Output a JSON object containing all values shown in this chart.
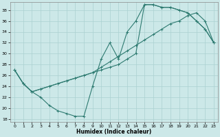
{
  "xlabel": "Humidex (Indice chaleur)",
  "bg_color": "#cce8e8",
  "line_color": "#2d7a70",
  "xlim": [
    -0.5,
    23.5
  ],
  "ylim": [
    17.5,
    39.5
  ],
  "xticks": [
    0,
    1,
    2,
    3,
    4,
    5,
    6,
    7,
    8,
    9,
    10,
    11,
    12,
    13,
    14,
    15,
    16,
    17,
    18,
    19,
    20,
    21,
    22,
    23
  ],
  "yticks": [
    18,
    20,
    22,
    24,
    26,
    28,
    30,
    32,
    34,
    36,
    38
  ],
  "line1_x": [
    0,
    1,
    2,
    3,
    4,
    5,
    6,
    7,
    8,
    9,
    10,
    11,
    12,
    13,
    14,
    15,
    16,
    17,
    18,
    19,
    20,
    21,
    22,
    23
  ],
  "line1_y": [
    27,
    24.5,
    23,
    22,
    20.5,
    19.5,
    19,
    18.5,
    18.5,
    24,
    29,
    32,
    29,
    34,
    36,
    39,
    39,
    38.5,
    38.5,
    38,
    37.5,
    36,
    34.5,
    32
  ],
  "line2_x": [
    0,
    1,
    2,
    3,
    4,
    5,
    6,
    7,
    8,
    9,
    10,
    11,
    12,
    13,
    14,
    15,
    16,
    17,
    18,
    19,
    20,
    21,
    22,
    23
  ],
  "line2_y": [
    27,
    24.5,
    23,
    23.5,
    24,
    24.5,
    25,
    25.5,
    26,
    26.5,
    27,
    27.5,
    28,
    29,
    30,
    39,
    39,
    38.5,
    38.5,
    38,
    37.5,
    36,
    34.5,
    32
  ],
  "line3_x": [
    0,
    1,
    2,
    3,
    4,
    5,
    6,
    7,
    8,
    9,
    10,
    11,
    12,
    13,
    14,
    15,
    16,
    17,
    18,
    19,
    20,
    21,
    22,
    23
  ],
  "line3_y": [
    27,
    24.5,
    23,
    23.5,
    24,
    24.5,
    25,
    25.5,
    26,
    26.5,
    27.5,
    28.5,
    29.5,
    30.5,
    31.5,
    32.5,
    33.5,
    34.5,
    35.5,
    36,
    37,
    37.5,
    36,
    32
  ],
  "grid_color": "#aad0d0",
  "marker": "+"
}
